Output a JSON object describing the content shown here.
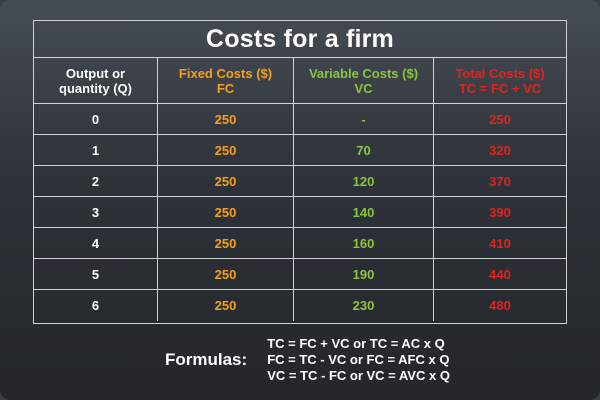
{
  "table": {
    "title": "Costs for a firm",
    "headers": [
      {
        "line1": "Output or",
        "line2": "quantity (Q)"
      },
      {
        "line1": "Fixed Costs ($)",
        "line2": "FC"
      },
      {
        "line1": "Variable Costs ($)",
        "line2": "VC"
      },
      {
        "line1": "Total Costs ($)",
        "line2": "TC = FC + VC"
      }
    ],
    "rows": [
      [
        "0",
        "250",
        "-",
        "250"
      ],
      [
        "1",
        "250",
        "70",
        "320"
      ],
      [
        "2",
        "250",
        "120",
        "370"
      ],
      [
        "3",
        "250",
        "140",
        "390"
      ],
      [
        "4",
        "250",
        "160",
        "410"
      ],
      [
        "5",
        "250",
        "190",
        "440"
      ],
      [
        "6",
        "250",
        "230",
        "480"
      ]
    ]
  },
  "formulas": {
    "label": "Formulas:",
    "lines": [
      "TC = FC + VC or TC = AC x Q",
      "FC = TC - VC or FC = AFC x Q",
      "VC = TC - FC or VC = AVC x Q"
    ]
  },
  "colors": {
    "background": "#2e3339",
    "text": "#ffffff",
    "fixed_costs": "#f5a01c",
    "variable_costs": "#8cc63f",
    "total_costs": "#e3231d"
  }
}
